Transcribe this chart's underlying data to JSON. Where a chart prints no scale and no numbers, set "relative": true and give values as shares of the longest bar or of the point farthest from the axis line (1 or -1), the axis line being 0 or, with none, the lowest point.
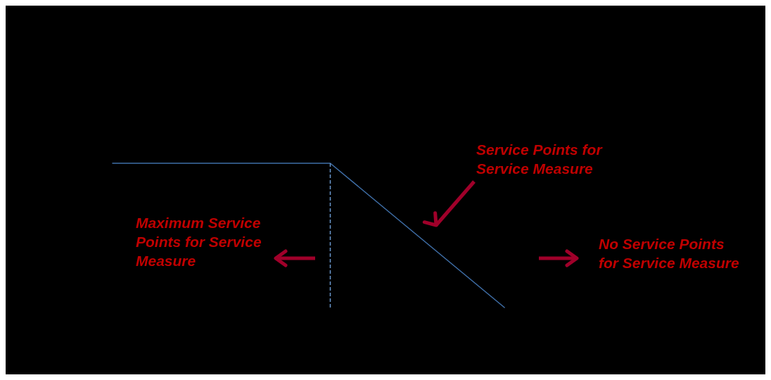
{
  "chart_data": {
    "type": "line",
    "relative": true,
    "categories": [
      null,
      null,
      null,
      null,
      null,
      null,
      null,
      null,
      null,
      null
    ],
    "series": [
      {
        "color": "#3f6fa8",
        "values": [
          1,
          1,
          1,
          1,
          1,
          1,
          0.75,
          0.5,
          0.25,
          0
        ]
      }
    ],
    "annotations": [
      "Service Points for\nService Measure",
      "Maximum Service\nPoints for Service\nMeasure",
      "No Service Points\nfor Service Measure"
    ]
  }
}
